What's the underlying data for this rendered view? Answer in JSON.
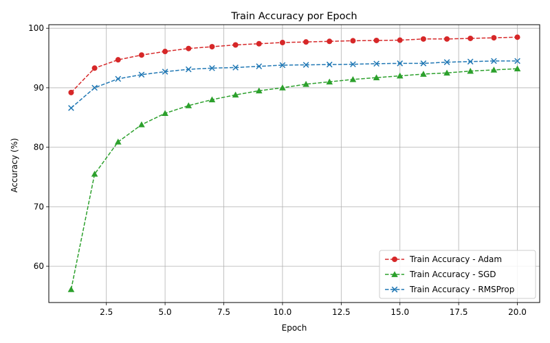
{
  "chart_data": {
    "type": "line",
    "title": "Train Accuracy por Epoch",
    "xlabel": "Epoch",
    "ylabel": "Accuracy (%)",
    "xlim": [
      0.05,
      20.95
    ],
    "ylim": [
      53.9,
      100.6
    ],
    "xticks": [
      2.5,
      5.0,
      7.5,
      10.0,
      12.5,
      15.0,
      17.5,
      20.0
    ],
    "xtick_labels": [
      "2.5",
      "5.0",
      "7.5",
      "10.0",
      "12.5",
      "15.0",
      "17.5",
      "20.0"
    ],
    "yticks": [
      60,
      70,
      80,
      90,
      100
    ],
    "ytick_labels": [
      "60",
      "70",
      "80",
      "90",
      "100"
    ],
    "grid": true,
    "legend_position": "lower-right",
    "x": [
      1,
      2,
      3,
      4,
      5,
      6,
      7,
      8,
      9,
      10,
      11,
      12,
      13,
      14,
      15,
      16,
      17,
      18,
      19,
      20
    ],
    "series": [
      {
        "name": "Train Accuracy - Adam",
        "color": "#d62728",
        "marker": "circle",
        "values": [
          89.2,
          93.3,
          94.7,
          95.5,
          96.1,
          96.6,
          96.9,
          97.2,
          97.4,
          97.6,
          97.7,
          97.8,
          97.9,
          97.95,
          98.0,
          98.2,
          98.2,
          98.3,
          98.4,
          98.5
        ]
      },
      {
        "name": "Train Accuracy - SGD",
        "color": "#2ca02c",
        "marker": "triangle",
        "values": [
          56.1,
          75.5,
          80.9,
          83.8,
          85.7,
          87.0,
          88.0,
          88.8,
          89.5,
          90.0,
          90.6,
          91.0,
          91.4,
          91.7,
          92.0,
          92.3,
          92.5,
          92.8,
          93.0,
          93.2
        ]
      },
      {
        "name": "Train Accuracy - RMSProp",
        "color": "#1f77b4",
        "marker": "x",
        "values": [
          86.6,
          90.0,
          91.5,
          92.2,
          92.7,
          93.1,
          93.3,
          93.4,
          93.6,
          93.8,
          93.85,
          93.9,
          93.95,
          94.05,
          94.1,
          94.1,
          94.3,
          94.4,
          94.5,
          94.5
        ]
      }
    ]
  }
}
